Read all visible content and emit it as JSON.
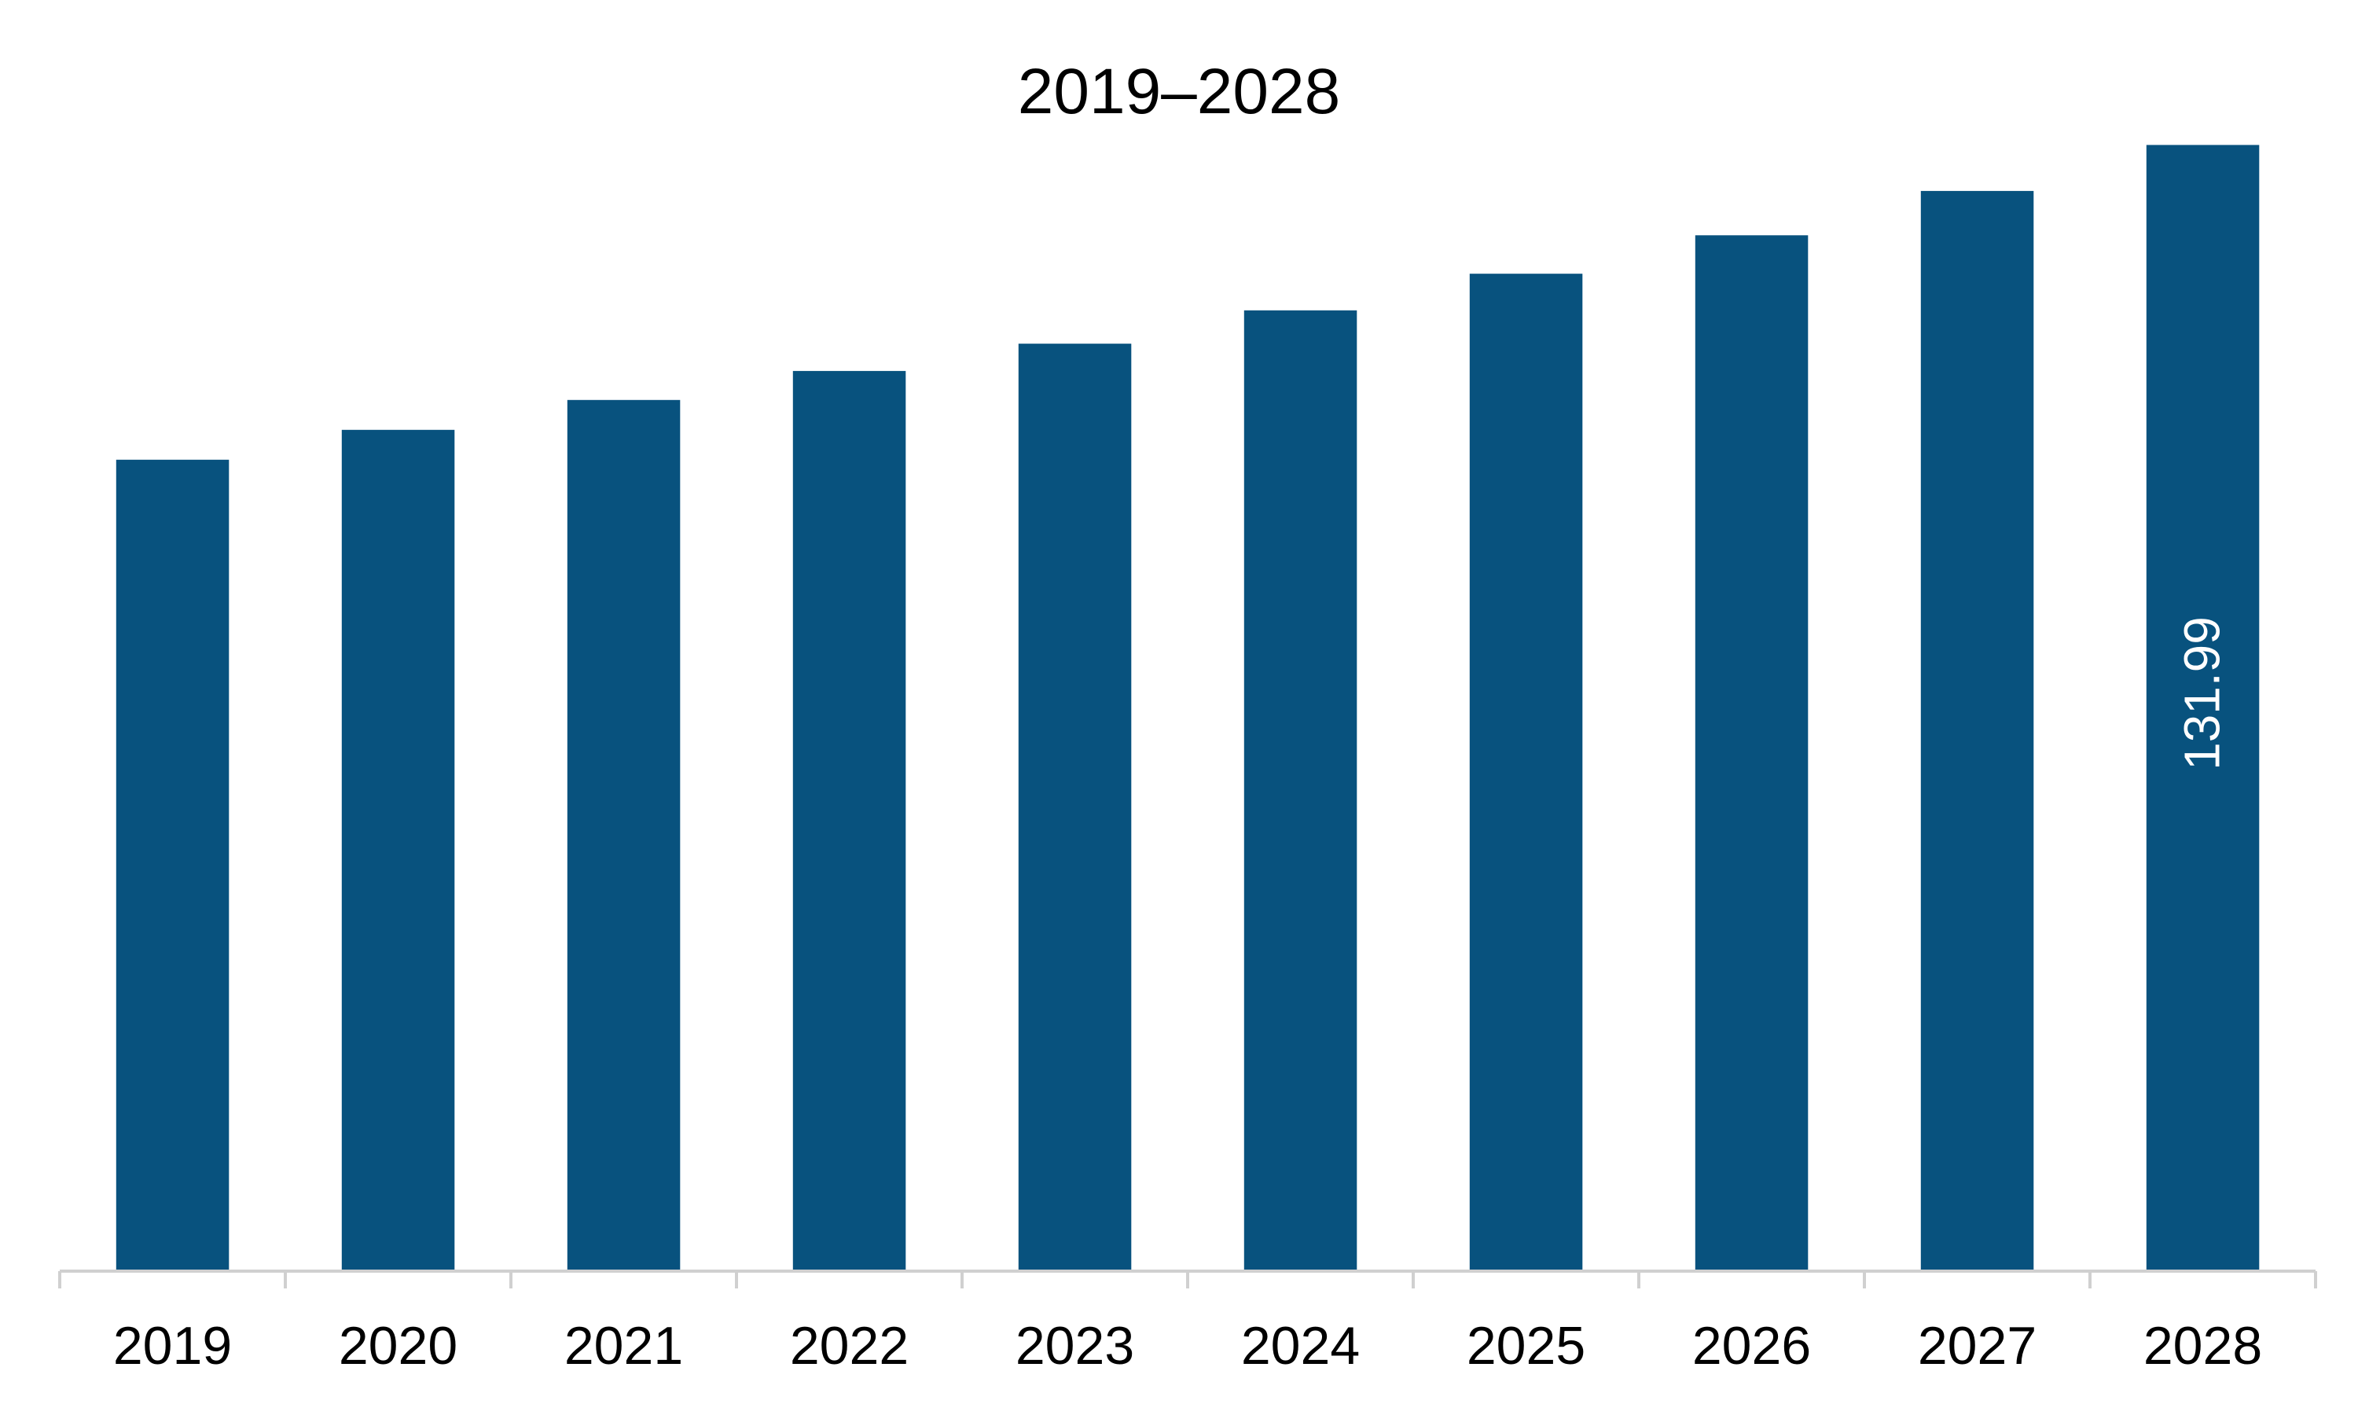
{
  "chart_data": {
    "type": "bar",
    "title": "2019–2028",
    "xlabel": "",
    "ylabel": "",
    "categories": [
      "2019",
      "2020",
      "2021",
      "2022",
      "2023",
      "2024",
      "2025",
      "2026",
      "2027",
      "2028"
    ],
    "values": [
      95.1,
      98.6,
      102.1,
      105.5,
      108.7,
      112.6,
      116.9,
      121.4,
      126.6,
      131.99
    ],
    "data_labels": [
      {
        "category": "2028",
        "text": "131.99"
      }
    ],
    "ylim": [
      0,
      137
    ],
    "grid": false,
    "legend": "none",
    "colors": {
      "bar": "#08527e",
      "axis": "#d0d0d0",
      "label_on_bar": "#ffffff",
      "text": "#000000"
    }
  }
}
